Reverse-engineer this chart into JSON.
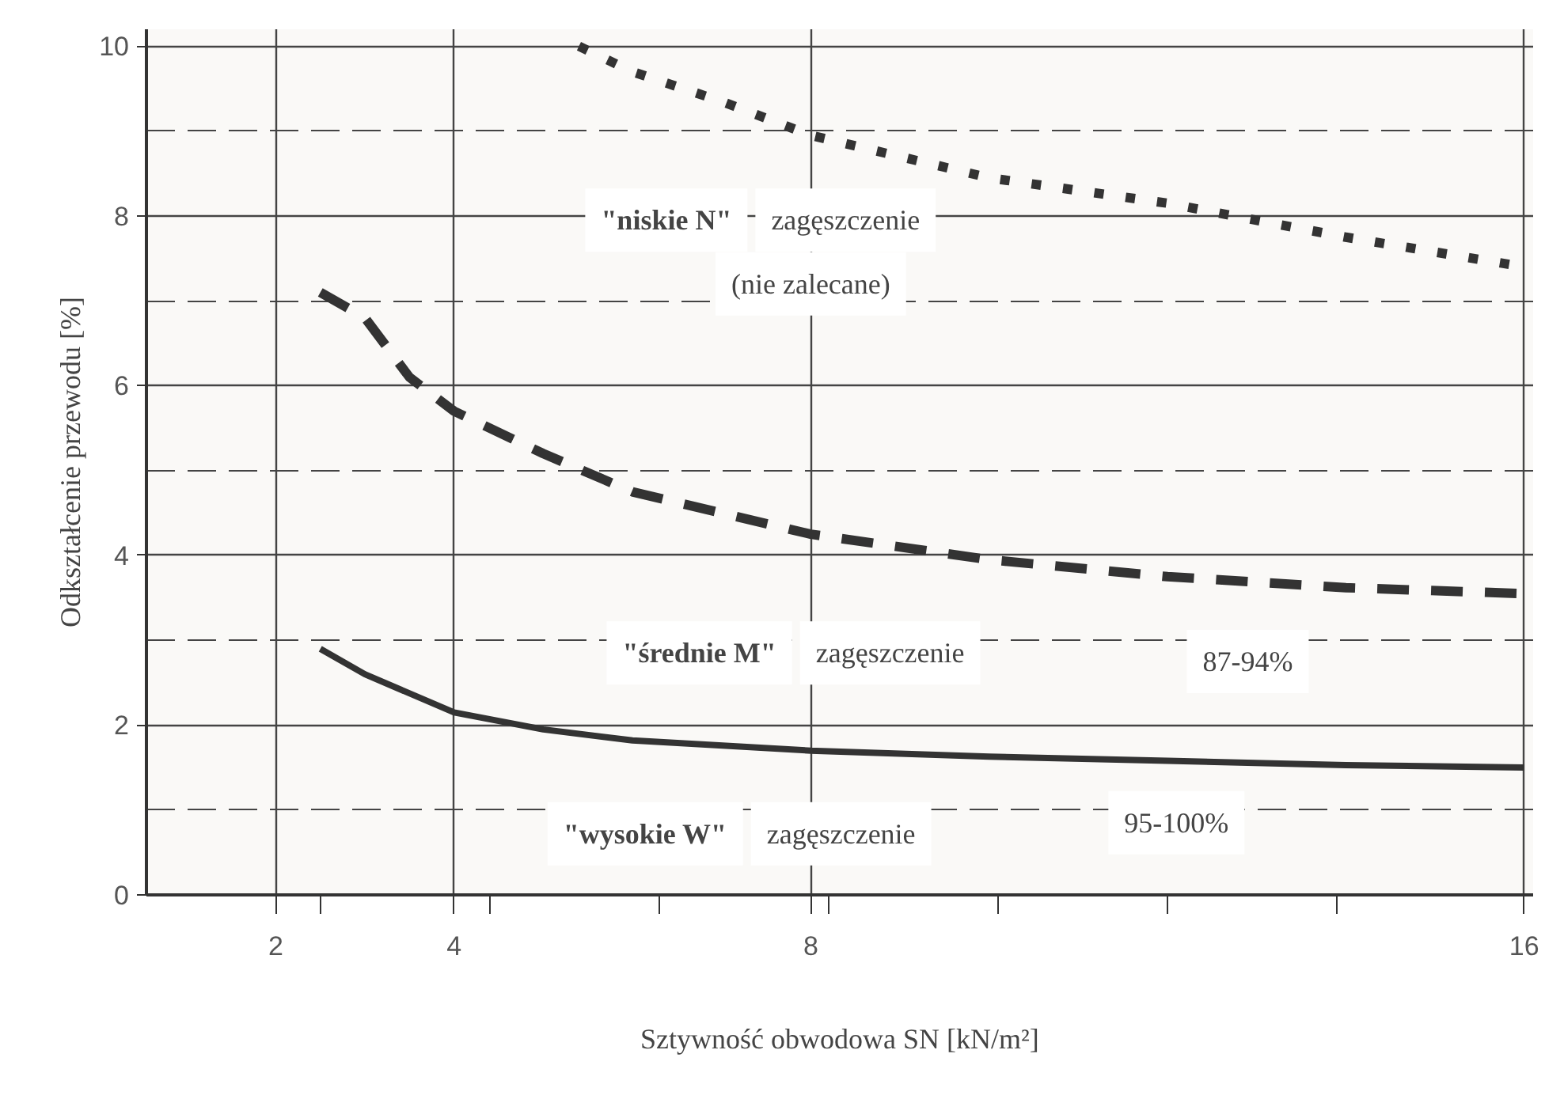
{
  "chart_data": {
    "type": "line",
    "xlabel": "Sztywność obwodowa SN [kN/m²]",
    "ylabel": "Odkształcenie przewodu [%]",
    "xlim": [
      0.55,
      16.1
    ],
    "ylim": [
      0,
      10.2
    ],
    "xticks": [
      2,
      {
        "value": 2.5,
        "label": null
      },
      4,
      {
        "value": 4.4,
        "label": null
      },
      {
        "value": 6.3,
        "label": null
      },
      8,
      {
        "value": 8.2,
        "label": null
      },
      {
        "value": 10.1,
        "label": null
      },
      {
        "value": 12,
        "label": null
      },
      {
        "value": 13.9,
        "label": null
      },
      16
    ],
    "yticks": [
      0,
      2,
      4,
      6,
      8,
      10
    ],
    "grid": true,
    "series": [
      {
        "color": "#333333",
        "line_style": "dotted",
        "x": [
          5.4,
          6,
          7,
          8,
          10,
          12,
          14,
          16
        ],
        "values": [
          10,
          9.7,
          9.35,
          8.95,
          8.45,
          8.15,
          7.75,
          7.4
        ]
      },
      {
        "color": "#333333",
        "line_style": "dashed",
        "x": [
          2.5,
          3,
          3.5,
          4,
          5,
          6,
          8,
          10,
          12,
          14,
          16
        ],
        "values": [
          7.1,
          6.8,
          6.1,
          5.7,
          5.2,
          4.75,
          4.25,
          3.95,
          3.75,
          3.62,
          3.55
        ]
      },
      {
        "color": "#333333",
        "line_style": "solid",
        "x": [
          2.5,
          3,
          4,
          5,
          6,
          8,
          10,
          12,
          14,
          16
        ],
        "values": [
          2.9,
          2.6,
          2.15,
          1.95,
          1.82,
          1.7,
          1.63,
          1.58,
          1.53,
          1.5
        ]
      }
    ],
    "annotations": [
      "\"niskie N\" zagęszczenie",
      "(nie zalecane)",
      "\"średnie M\" zagęszczenie",
      "87-94%",
      "\"wysokie W\" zagęszczenie",
      "95-100%"
    ]
  }
}
